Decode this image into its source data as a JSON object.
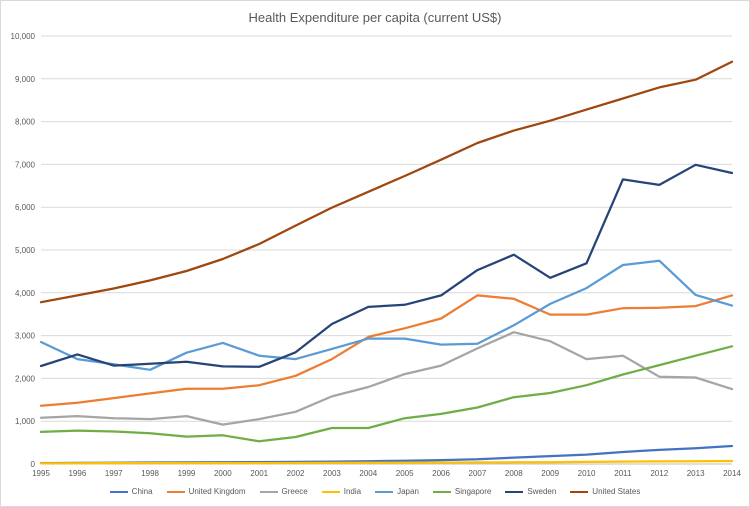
{
  "chart_data": {
    "type": "line",
    "title": "Health Expenditure per capita (current US$)",
    "xlabel": "",
    "ylabel": "",
    "x": [
      "1995",
      "1996",
      "1997",
      "1998",
      "1999",
      "2000",
      "2001",
      "2002",
      "2003",
      "2004",
      "2005",
      "2006",
      "2007",
      "2008",
      "2009",
      "2010",
      "2011",
      "2012",
      "2013",
      "2014"
    ],
    "ylim": [
      0,
      10000
    ],
    "yticks": [
      "0",
      "1,000",
      "2,000",
      "3,000",
      "4,000",
      "5,000",
      "6,000",
      "7,000",
      "8,000",
      "9,000",
      "10,000"
    ],
    "grid": true,
    "legend_position": "bottom",
    "series": [
      {
        "name": "China",
        "color": "#4472c4",
        "values": [
          20,
          25,
          30,
          35,
          38,
          40,
          45,
          50,
          55,
          65,
          75,
          90,
          110,
          150,
          185,
          220,
          280,
          330,
          370,
          420
        ]
      },
      {
        "name": "United Kingdom",
        "color": "#ed7d31",
        "values": [
          1360,
          1430,
          1540,
          1650,
          1760,
          1760,
          1840,
          2060,
          2450,
          2970,
          3170,
          3400,
          3940,
          3860,
          3490,
          3490,
          3640,
          3650,
          3690,
          3940
        ]
      },
      {
        "name": "Greece",
        "color": "#a5a5a5",
        "values": [
          1080,
          1120,
          1070,
          1050,
          1120,
          920,
          1050,
          1220,
          1580,
          1800,
          2100,
          2300,
          2700,
          3080,
          2870,
          2450,
          2530,
          2040,
          2020,
          1750
        ]
      },
      {
        "name": "India",
        "color": "#ffc000",
        "values": [
          15,
          18,
          20,
          20,
          22,
          22,
          22,
          23,
          25,
          28,
          30,
          32,
          38,
          40,
          42,
          48,
          55,
          60,
          62,
          70
        ]
      },
      {
        "name": "Japan",
        "color": "#5b9bd5",
        "values": [
          2850,
          2450,
          2330,
          2200,
          2600,
          2830,
          2530,
          2450,
          2690,
          2930,
          2930,
          2790,
          2810,
          3240,
          3740,
          4110,
          4650,
          4750,
          3950,
          3700
        ]
      },
      {
        "name": "Singapore",
        "color": "#70ad47",
        "values": [
          750,
          780,
          760,
          720,
          640,
          670,
          530,
          630,
          840,
          840,
          1070,
          1170,
          1320,
          1560,
          1660,
          1840,
          2090,
          2310,
          2530,
          2750
        ]
      },
      {
        "name": "Sweden",
        "color": "#264478",
        "values": [
          2290,
          2560,
          2300,
          2340,
          2390,
          2280,
          2270,
          2610,
          3270,
          3670,
          3720,
          3940,
          4530,
          4890,
          4350,
          4690,
          6650,
          6520,
          6990,
          6800
        ]
      },
      {
        "name": "United States",
        "color": "#9e480e",
        "values": [
          3780,
          3940,
          4100,
          4290,
          4510,
          4790,
          5140,
          5570,
          5990,
          6360,
          6730,
          7110,
          7500,
          7790,
          8020,
          8280,
          8540,
          8800,
          8980,
          9400
        ]
      }
    ]
  }
}
